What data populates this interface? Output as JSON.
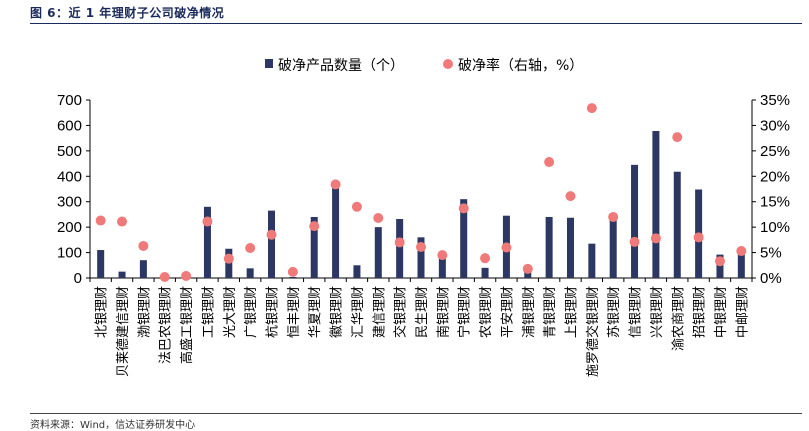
{
  "header": {
    "title": "图 6：近 1 年理财子公司破净情况"
  },
  "footer": {
    "source": "资料来源：Wind，信达证券研发中心"
  },
  "colors": {
    "bar": "#2c3763",
    "dot": "#f07a7a",
    "rule": "#1a2a5c"
  },
  "chart_data": {
    "type": "bar",
    "title": "",
    "categories": [
      "北银理财",
      "贝莱德建信理财",
      "渤银理财",
      "法巴农银理财",
      "高盛工银理财",
      "工银理财",
      "光大理财",
      "广银理财",
      "杭银理财",
      "恒丰理财",
      "华夏理财",
      "徽银理财",
      "汇华理财",
      "建信理财",
      "交银理财",
      "民生理财",
      "南银理财",
      "宁银理财",
      "农银理财",
      "平安理财",
      "浦银理财",
      "青银理财",
      "上银理财",
      "施罗德交银理财",
      "苏银理财",
      "信银理财",
      "兴银理财",
      "渝农商理财",
      "招银理财",
      "中银理财",
      "中邮理财"
    ],
    "series": [
      {
        "name": "破净产品数量（个）",
        "axis": "left",
        "kind": "bar",
        "values": [
          110,
          25,
          70,
          2,
          3,
          280,
          115,
          38,
          265,
          4,
          240,
          360,
          50,
          200,
          232,
          160,
          80,
          310,
          40,
          245,
          28,
          240,
          237,
          135,
          240,
          445,
          578,
          418,
          348,
          92,
          97
        ]
      },
      {
        "name": "破净率（右轴，%）",
        "axis": "right",
        "kind": "scatter",
        "values": [
          11.3,
          11.1,
          6.3,
          0.2,
          0.4,
          11.1,
          3.8,
          5.9,
          8.5,
          1.2,
          10.2,
          18.4,
          14.0,
          11.8,
          7.0,
          6.1,
          4.5,
          13.7,
          3.9,
          6.0,
          1.8,
          22.8,
          16.1,
          33.4,
          12.0,
          7.1,
          7.8,
          27.7,
          8.0,
          3.3,
          5.3
        ]
      }
    ],
    "y_left": {
      "min": 0,
      "max": 700,
      "ticks": [
        0,
        100,
        200,
        300,
        400,
        500,
        600,
        700
      ]
    },
    "y_right": {
      "min": 0,
      "max": 35,
      "ticks": [
        "0%",
        "5%",
        "10%",
        "15%",
        "20%",
        "25%",
        "30%",
        "35%"
      ]
    },
    "legend_position": "top-center",
    "grid": false
  }
}
